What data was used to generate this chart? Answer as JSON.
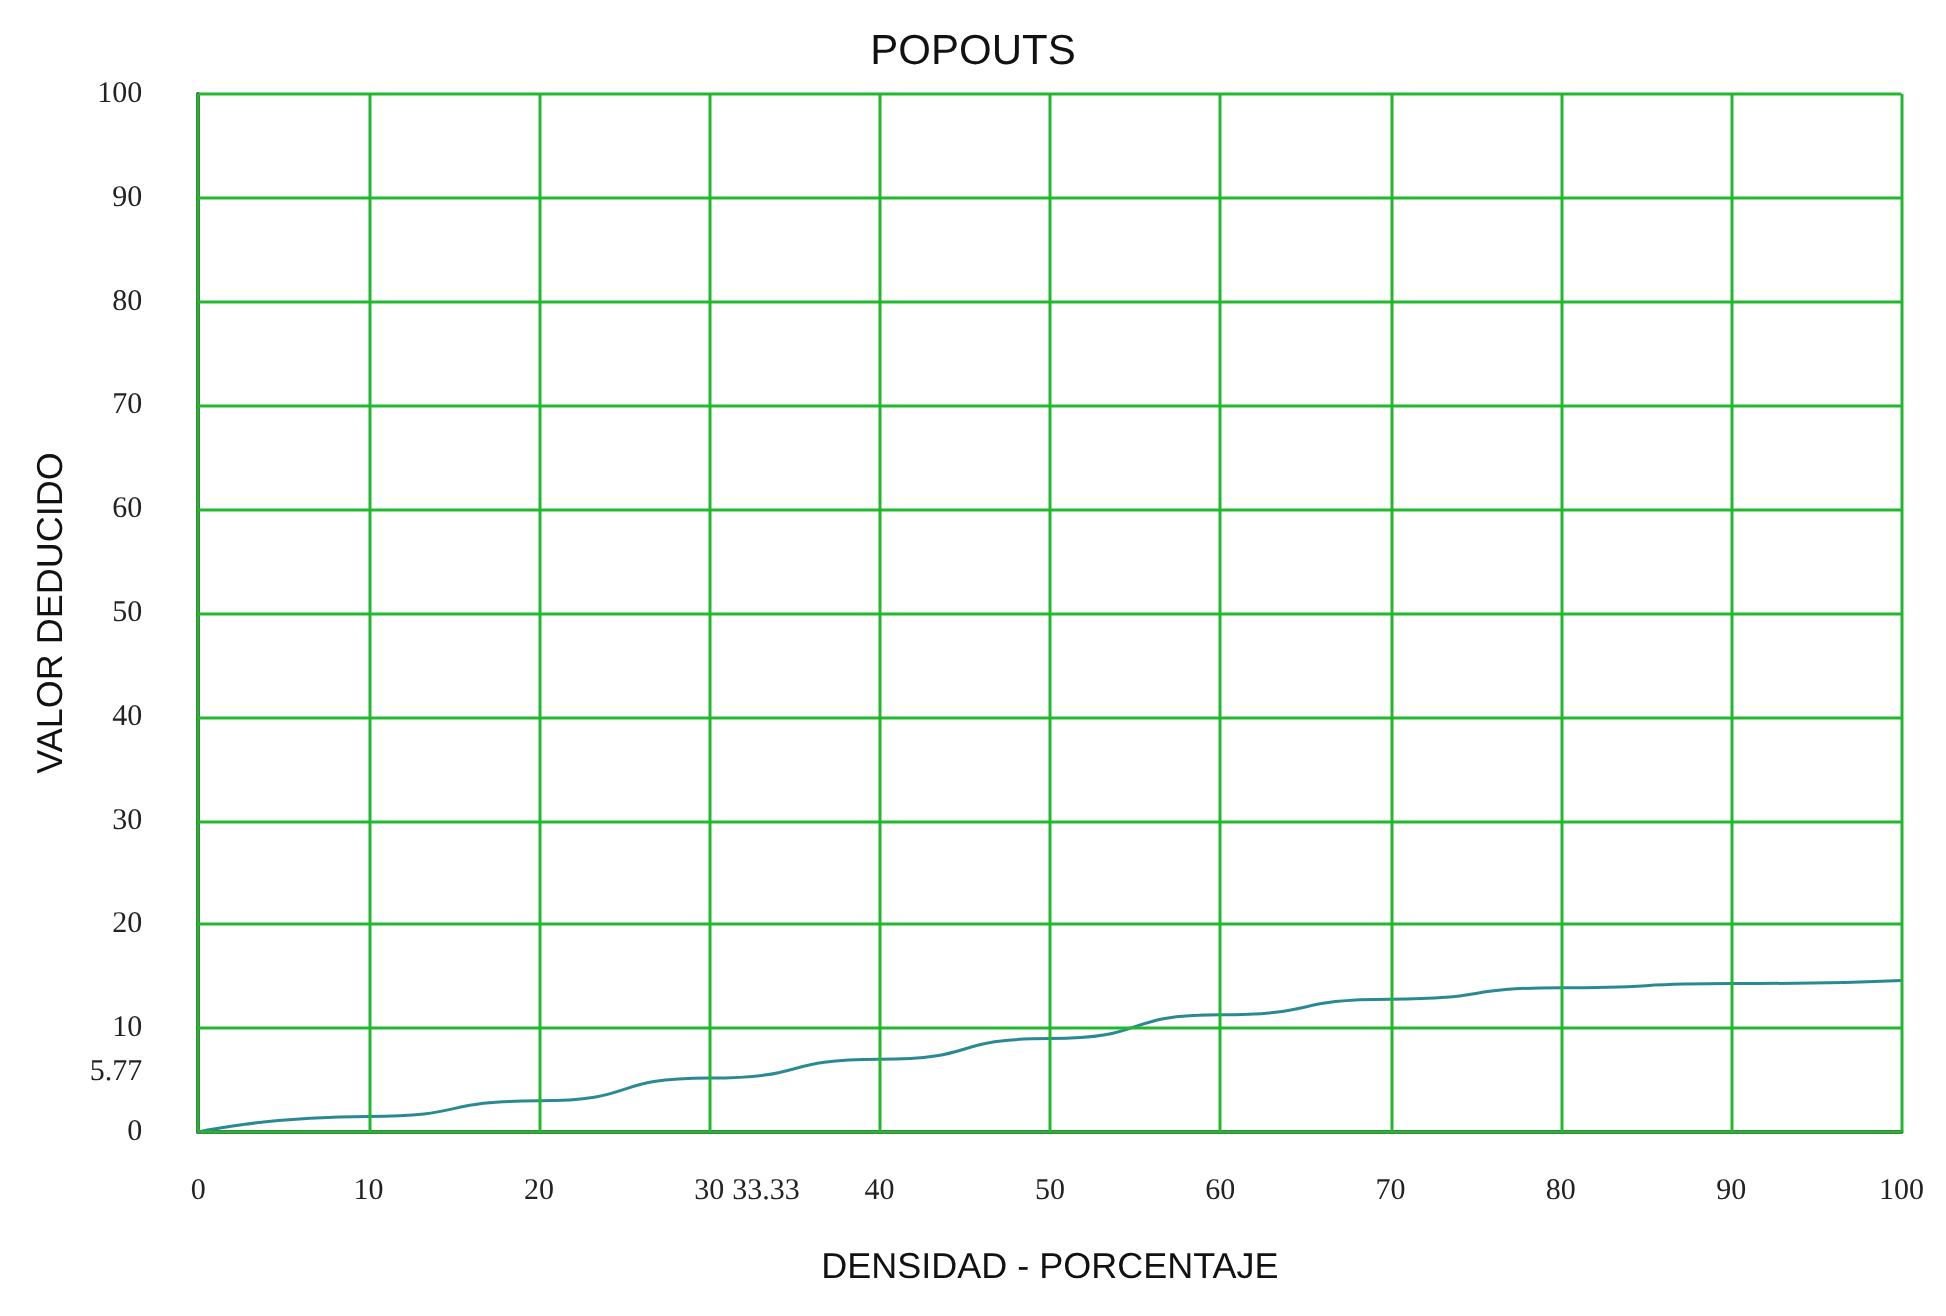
{
  "chart_data": {
    "type": "line",
    "title": "POPOUTS",
    "xlabel": "DENSIDAD - PORCENTAJE",
    "ylabel": "VALOR DEDUCIDO",
    "x": [
      0,
      10,
      20,
      30,
      40,
      50,
      60,
      70,
      80,
      90,
      100
    ],
    "series": [
      {
        "color": "#2a8a94",
        "values": [
          0,
          1.5,
          3,
          5.2,
          7,
          9,
          11.3,
          12.8,
          13.9,
          14.3,
          14.6
        ]
      }
    ],
    "xlim": [
      0,
      100
    ],
    "xticks": [
      0,
      10,
      20,
      30,
      33.33,
      40,
      50,
      60,
      70,
      80,
      90,
      100
    ],
    "ylim": [
      0,
      100
    ],
    "yticks": [
      0,
      5.77,
      10,
      20,
      30,
      40,
      50,
      60,
      70,
      80,
      90,
      100
    ],
    "grid": true,
    "marker": "none",
    "line_style": "solid"
  }
}
